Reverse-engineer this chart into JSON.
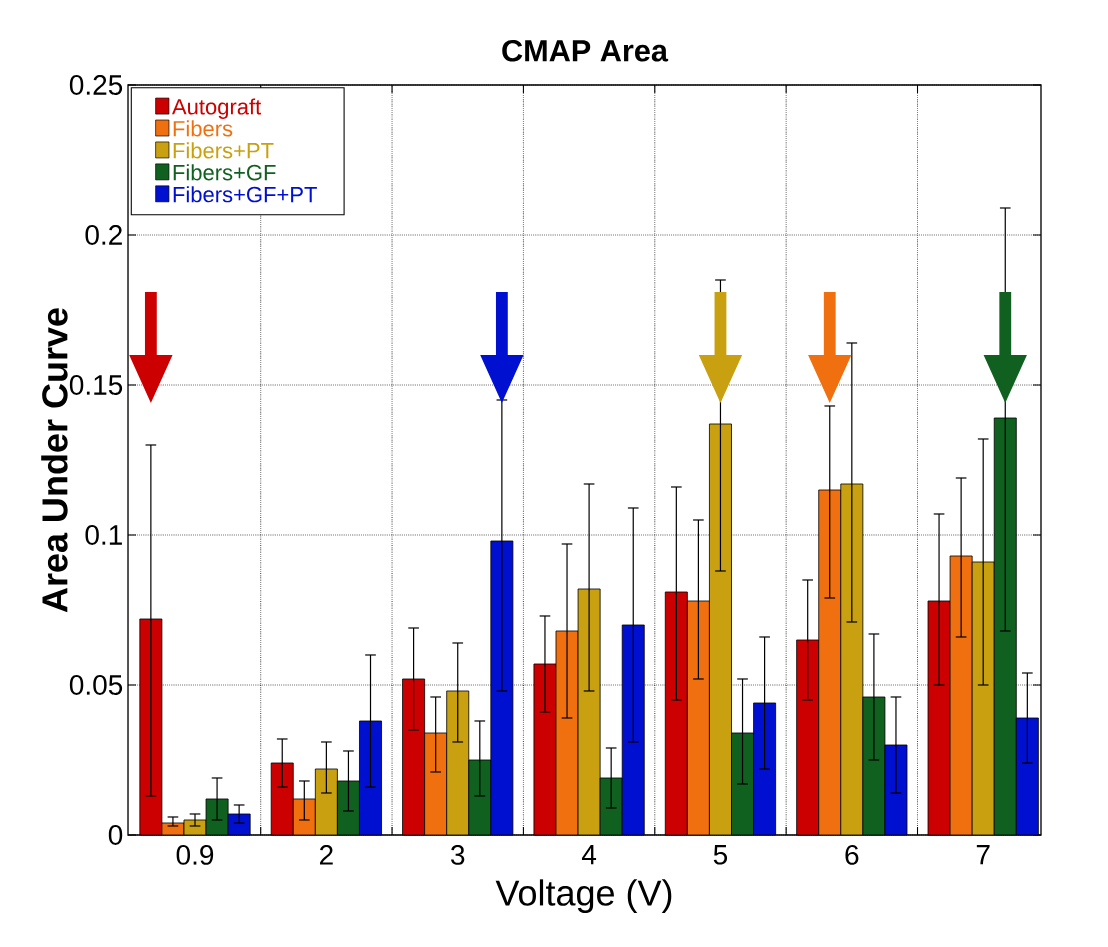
{
  "chart_data": {
    "type": "bar",
    "title": "CMAP Area",
    "xlabel": "Voltage (V)",
    "ylabel": "Area Under Curve",
    "categories": [
      "0.9",
      "2",
      "3",
      "4",
      "5",
      "6",
      "7"
    ],
    "ylim": [
      0,
      0.25
    ],
    "yticks": [
      0,
      0.05,
      0.1,
      0.15,
      0.2,
      0.25
    ],
    "grid": true,
    "legend": "top left",
    "series": [
      {
        "name": "Autograft",
        "color": "#cc0000",
        "values": [
          0.072,
          0.024,
          0.052,
          0.057,
          0.081,
          0.065,
          0.078
        ],
        "errors": [
          [
            0.013,
            0.13
          ],
          [
            0.016,
            0.032
          ],
          [
            0.035,
            0.069
          ],
          [
            0.041,
            0.073
          ],
          [
            0.045,
            0.116
          ],
          [
            0.045,
            0.085
          ],
          [
            0.05,
            0.107
          ]
        ]
      },
      {
        "name": "Fibers",
        "color": "#f07010",
        "values": [
          0.004,
          0.012,
          0.034,
          0.068,
          0.078,
          0.115,
          0.093
        ],
        "errors": [
          [
            0.003,
            0.006
          ],
          [
            0.005,
            0.018
          ],
          [
            0.021,
            0.046
          ],
          [
            0.039,
            0.097
          ],
          [
            0.052,
            0.105
          ],
          [
            0.079,
            0.143
          ],
          [
            0.066,
            0.119
          ]
        ]
      },
      {
        "name": "Fibers+PT",
        "color": "#c8a010",
        "values": [
          0.005,
          0.022,
          0.048,
          0.082,
          0.137,
          0.117,
          0.091
        ],
        "errors": [
          [
            0.003,
            0.007
          ],
          [
            0.014,
            0.031
          ],
          [
            0.031,
            0.064
          ],
          [
            0.048,
            0.117
          ],
          [
            0.088,
            0.185
          ],
          [
            0.071,
            0.164
          ],
          [
            0.05,
            0.132
          ]
        ]
      },
      {
        "name": "Fibers+GF",
        "color": "#106020",
        "values": [
          0.012,
          0.018,
          0.025,
          0.019,
          0.034,
          0.046,
          0.139
        ],
        "errors": [
          [
            0.005,
            0.019
          ],
          [
            0.008,
            0.028
          ],
          [
            0.013,
            0.038
          ],
          [
            0.009,
            0.029
          ],
          [
            0.017,
            0.052
          ],
          [
            0.025,
            0.067
          ],
          [
            0.068,
            0.209
          ]
        ]
      },
      {
        "name": "Fibers+GF+PT",
        "color": "#0010d0",
        "values": [
          0.007,
          0.038,
          0.098,
          0.07,
          0.044,
          0.03,
          0.039
        ],
        "errors": [
          [
            0.004,
            0.01
          ],
          [
            0.016,
            0.06
          ],
          [
            0.048,
            0.145
          ],
          [
            0.031,
            0.109
          ],
          [
            0.022,
            0.066
          ],
          [
            0.014,
            0.046
          ],
          [
            0.024,
            0.054
          ]
        ]
      }
    ]
  }
}
